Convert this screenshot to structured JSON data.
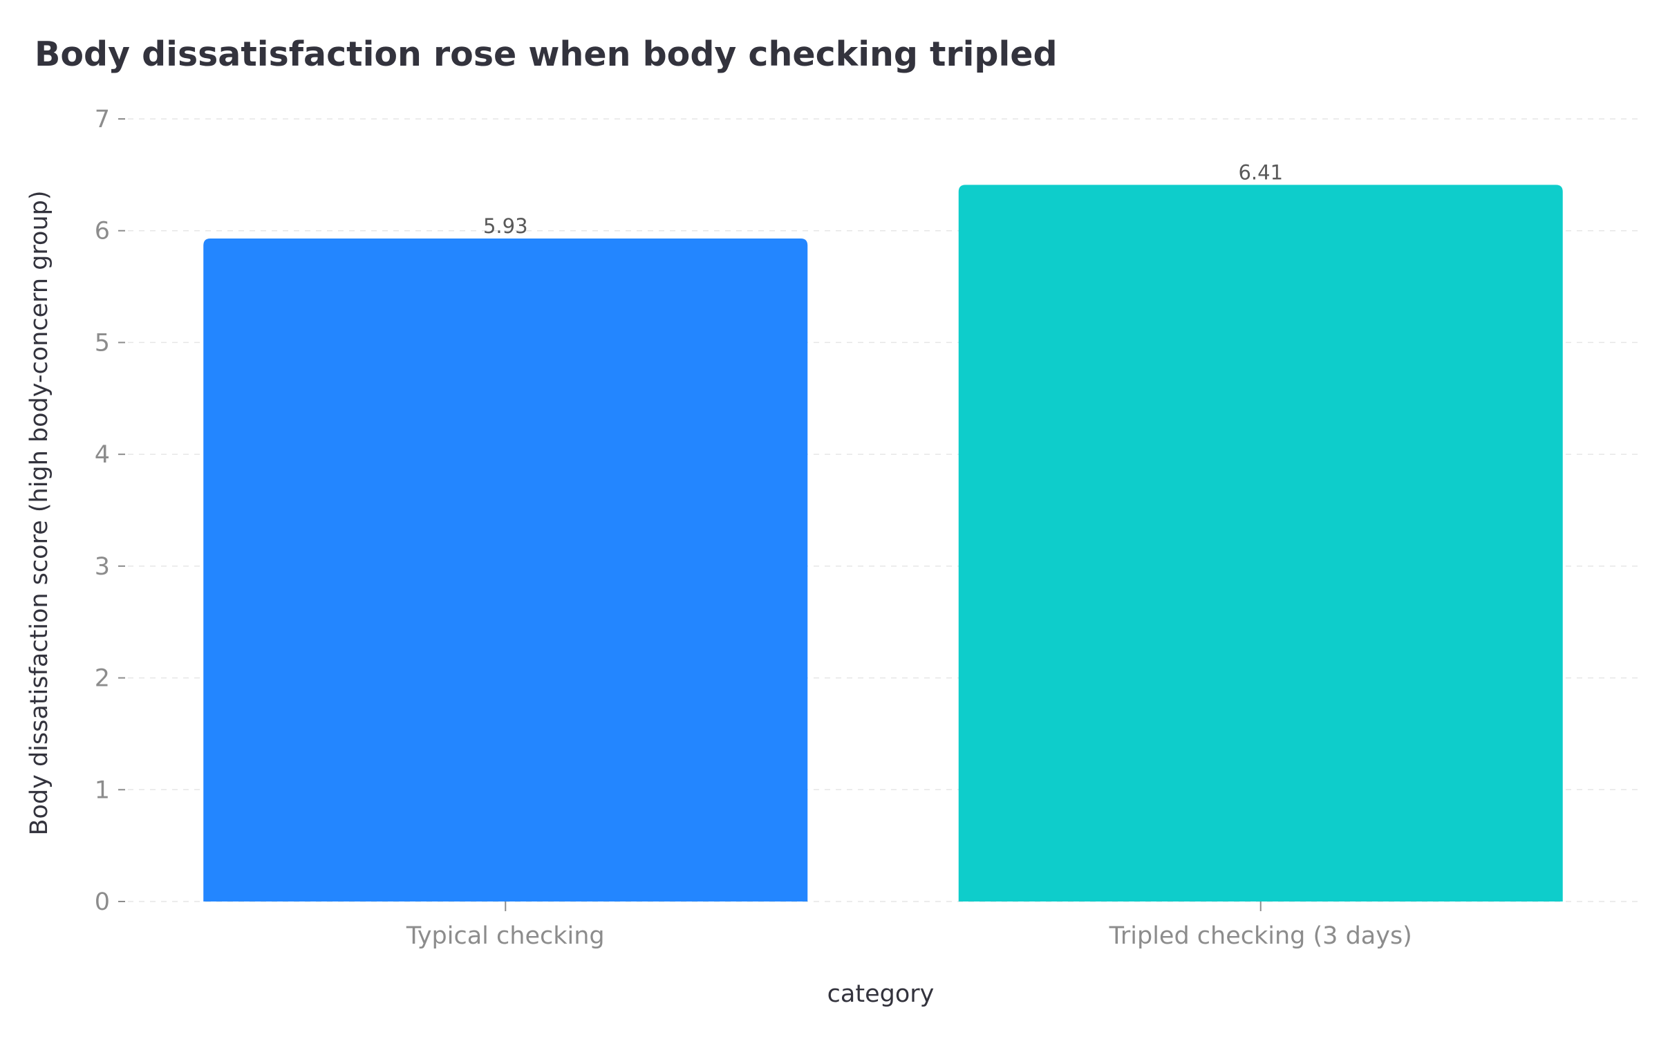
{
  "chart_data": {
    "type": "bar",
    "title": "Body dissatisfaction rose when body checking tripled",
    "xlabel": "category",
    "ylabel": "Body dissatisfaction score (high body-concern group)",
    "categories": [
      "Typical checking",
      "Tripled checking (3 days)"
    ],
    "values": [
      5.93,
      6.41
    ],
    "value_labels": [
      "5.93",
      "6.41"
    ],
    "colors": [
      "#2386ff",
      "#0ecdcb"
    ],
    "ylim": [
      0,
      7
    ],
    "yticks": [
      0,
      1,
      2,
      3,
      4,
      5,
      6,
      7
    ],
    "grid": "horizontal dashed",
    "legend": "none"
  }
}
